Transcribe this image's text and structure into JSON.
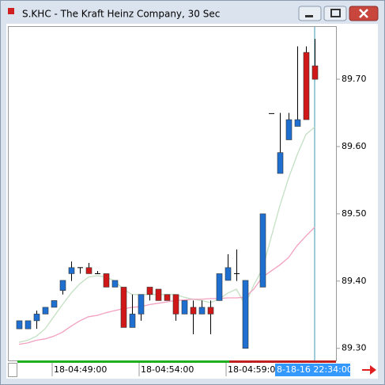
{
  "chart_data": {
    "type": "candlestick",
    "title": "S.KHC - The Kraft Heinz Company, 30 Sec",
    "open": [
      89.329,
      89.329,
      89.341,
      89.351,
      89.361,
      89.386,
      89.411,
      89.42,
      89.42,
      89.411,
      89.411,
      89.391,
      89.391,
      89.331,
      89.351,
      89.391,
      89.388,
      89.38,
      89.38,
      89.351,
      89.361,
      89.351,
      89.361,
      89.371,
      89.401,
      89.411,
      89.3,
      null,
      89.391,
      89.649,
      89.56,
      89.61,
      89.63,
      89.74,
      89.72
    ],
    "high": [
      89.341,
      89.341,
      89.356,
      89.361,
      89.371,
      89.401,
      89.429,
      89.42,
      89.427,
      89.415,
      89.411,
      89.401,
      89.391,
      89.38,
      89.38,
      89.391,
      89.388,
      89.38,
      89.38,
      89.371,
      89.371,
      89.371,
      89.371,
      89.411,
      89.44,
      89.447,
      89.401,
      null,
      89.5,
      89.649,
      89.65,
      89.65,
      89.749,
      89.749,
      89.76
    ],
    "low": [
      89.329,
      89.329,
      89.329,
      89.351,
      89.361,
      89.38,
      89.4,
      89.411,
      89.411,
      89.411,
      89.391,
      89.391,
      89.331,
      89.331,
      89.341,
      89.371,
      89.371,
      89.371,
      89.341,
      89.351,
      89.321,
      89.351,
      89.321,
      89.371,
      89.401,
      89.4,
      89.3,
      null,
      89.391,
      89.649,
      89.56,
      89.61,
      89.63,
      89.64,
      89.7
    ],
    "close": [
      89.341,
      89.341,
      89.351,
      89.361,
      89.371,
      89.401,
      89.42,
      89.42,
      89.411,
      89.411,
      89.391,
      89.401,
      89.331,
      89.351,
      89.38,
      89.38,
      89.371,
      89.371,
      89.351,
      89.371,
      89.351,
      89.361,
      89.351,
      89.411,
      89.42,
      89.411,
      89.401,
      null,
      89.5,
      89.649,
      89.591,
      89.64,
      89.64,
      89.64,
      89.7
    ],
    "up_color": "#1f6fd1",
    "down_color": "#d01818",
    "moving_averages": [
      {
        "color": "#c3e0c3",
        "values": [
          89.309,
          89.312,
          89.318,
          89.329,
          89.347,
          89.365,
          89.382,
          89.396,
          89.406,
          89.408,
          89.406,
          89.4,
          89.388,
          89.38,
          89.38,
          89.38,
          89.38,
          89.38,
          89.38,
          89.376,
          89.373,
          89.371,
          89.368,
          89.373,
          89.382,
          89.388,
          89.365,
          89.394,
          89.418,
          89.465,
          89.512,
          89.553,
          89.588,
          89.618,
          89.629
        ]
      },
      {
        "color": "#f2a0c0",
        "values": [
          89.306,
          89.308,
          89.312,
          89.314,
          89.318,
          89.324,
          89.333,
          89.341,
          89.347,
          89.349,
          89.353,
          89.356,
          89.359,
          89.361,
          89.362,
          89.365,
          89.367,
          89.369,
          89.371,
          89.372,
          89.373,
          89.373,
          89.374,
          89.374,
          89.375,
          89.375,
          89.376,
          89.388,
          89.406,
          89.415,
          89.424,
          89.435,
          89.453,
          89.467,
          89.48
        ]
      }
    ],
    "ylim": [
      89.282,
      89.779
    ],
    "yticks": [
      {
        "value": 89.3,
        "label": "89.30"
      },
      {
        "value": 89.4,
        "label": "89.40"
      },
      {
        "value": 89.5,
        "label": "89.50"
      },
      {
        "value": 89.6,
        "label": "89.60"
      },
      {
        "value": 89.7,
        "label": "89.70"
      }
    ],
    "x_labels": [
      "18-04:49:00",
      "18-04:54:00",
      "18-04:59:00"
    ],
    "cursor_label": "8-18-16 22:34:00"
  }
}
